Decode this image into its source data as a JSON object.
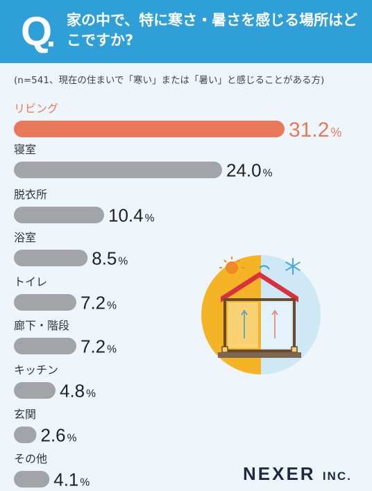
{
  "header": {
    "q_mark": "Q",
    "question": "家の中で、特に寒さ・暑さを感じる場所はどこですか?"
  },
  "note": "(n=541、現在の住まいで「寒い」または「暑い」と感じることがある方)",
  "brand": {
    "name": "NEXER",
    "suffix": "INC."
  },
  "colors": {
    "header": "#2f9fd8",
    "highlight": "#e9785a",
    "bar": "#a3a4a8",
    "background": "#eef6fb"
  },
  "chart_data": {
    "type": "bar",
    "orientation": "horizontal",
    "unit": "%",
    "categories": [
      "リビング",
      "寝室",
      "脱衣所",
      "浴室",
      "トイレ",
      "廊下・階段",
      "キッチン",
      "玄関",
      "その他"
    ],
    "values": [
      31.2,
      24.0,
      10.4,
      8.5,
      7.2,
      7.2,
      4.8,
      2.6,
      4.1
    ],
    "value_labels": [
      "31.2",
      "24.0",
      "10.4",
      "8.5",
      "7.2",
      "7.2",
      "4.8",
      "2.6",
      "4.1"
    ],
    "highlight_index": 0,
    "title": "",
    "xlabel": "",
    "ylabel": "",
    "grid": false
  }
}
